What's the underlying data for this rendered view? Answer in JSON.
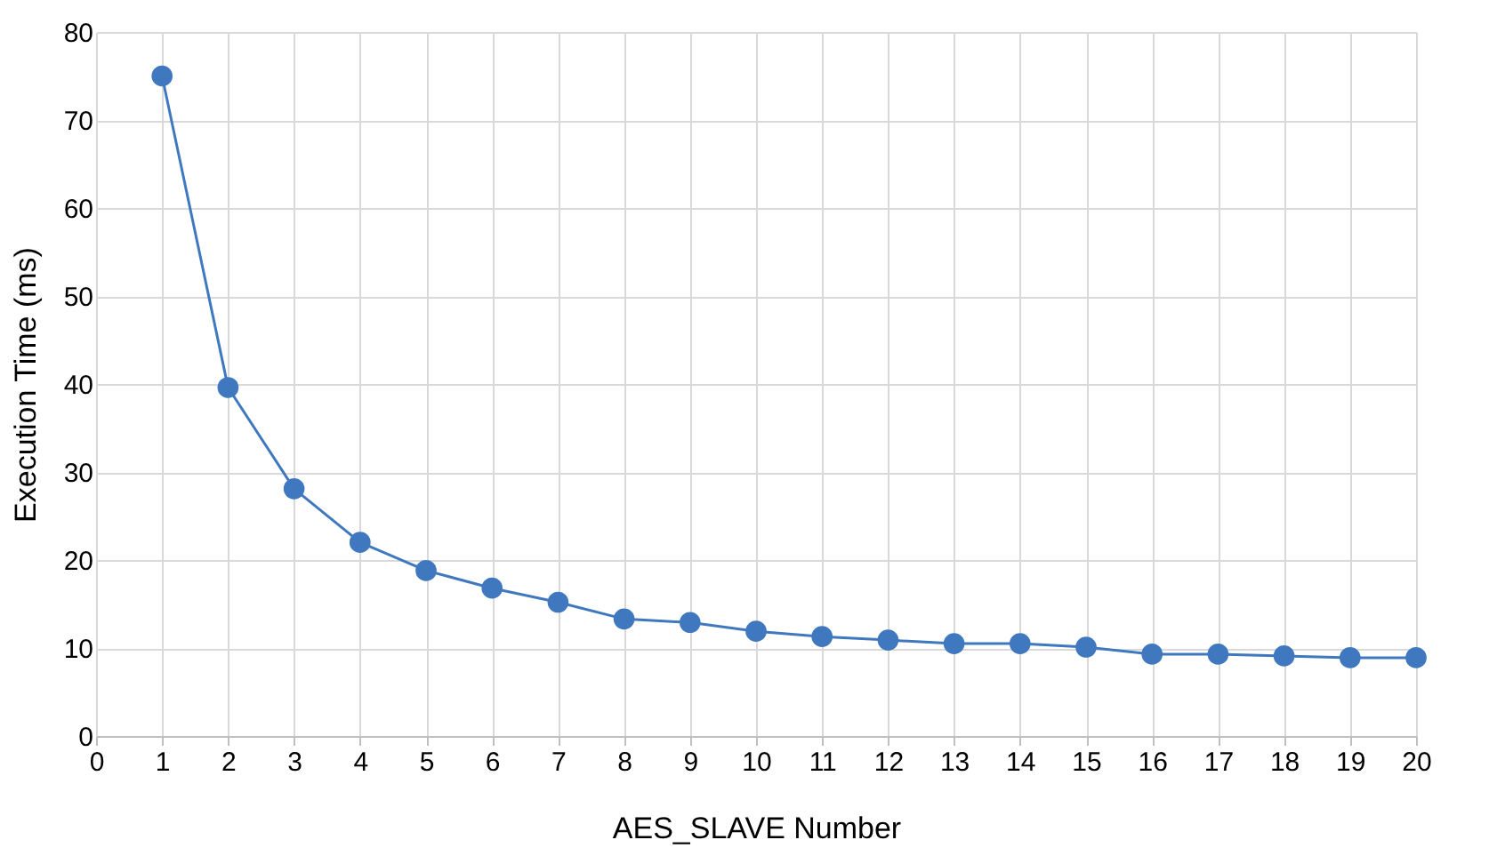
{
  "chart_data": {
    "type": "line",
    "xlabel": "AES_SLAVE   Number",
    "ylabel": "Execution Time (ms)",
    "x": [
      1,
      2,
      3,
      4,
      5,
      6,
      7,
      8,
      9,
      10,
      11,
      12,
      13,
      14,
      15,
      16,
      17,
      18,
      19,
      20
    ],
    "series": [
      {
        "color": "#4078c0",
        "values": [
          75.0,
          39.6,
          28.1,
          22.0,
          18.8,
          16.8,
          15.2,
          13.3,
          12.9,
          11.9,
          11.3,
          10.9,
          10.5,
          10.5,
          10.1,
          9.3,
          9.3,
          9.1,
          8.9,
          8.9
        ]
      }
    ],
    "xlim": [
      0,
      20
    ],
    "xticks": [
      0,
      1,
      2,
      3,
      4,
      5,
      6,
      7,
      8,
      9,
      10,
      11,
      12,
      13,
      14,
      15,
      16,
      17,
      18,
      19,
      20
    ],
    "ylim": [
      0,
      80
    ],
    "yticks": [
      0,
      10,
      20,
      30,
      40,
      50,
      60,
      70,
      80
    ],
    "grid": true,
    "marker": "circle",
    "line_style": "solid"
  }
}
